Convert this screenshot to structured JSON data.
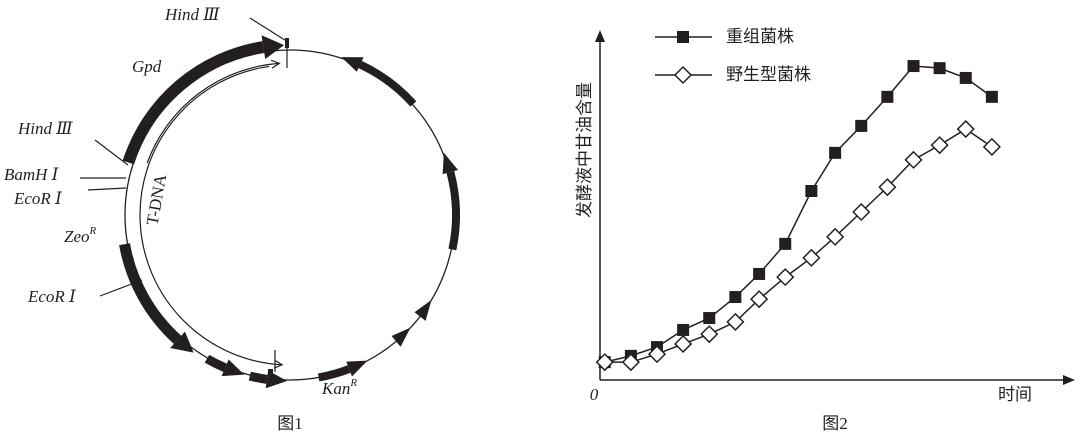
{
  "figure1": {
    "labels": {
      "hind3_top": "Hind Ⅲ",
      "gpd": "Gpd",
      "hind3_left": "Hind Ⅲ",
      "bamh1": "BamH Ⅰ",
      "ecor1_upper": "EcoR Ⅰ",
      "zeo": {
        "text": "Zeo",
        "sup": "R"
      },
      "tdna": "T-DNA",
      "ecor1_lower": "EcoR Ⅰ",
      "kan": {
        "text": "Kan",
        "sup": "R"
      }
    },
    "caption": "图1"
  },
  "chart_data": {
    "type": "line",
    "caption": "图2",
    "x_label": "时间",
    "y_label": "发酵液中甘油含量",
    "xlim": [
      0,
      100
    ],
    "ylim": [
      0,
      100
    ],
    "xticks": [
      0
    ],
    "x": [
      1,
      6.5,
      12,
      17.5,
      23,
      28.5,
      33.5,
      39,
      44.5,
      49.5,
      55,
      60.5,
      66,
      71.5,
      77,
      82.5
    ],
    "series": [
      {
        "name": "重组菌株",
        "color": "#231f20",
        "marker": "square",
        "values": [
          5.1,
          6.9,
          9.4,
          14.3,
          17.7,
          23.7,
          30.3,
          38.9,
          54,
          64.9,
          72.6,
          80.9,
          89.7,
          89.1,
          86.3,
          80.9
        ]
      },
      {
        "name": "野生型菌株",
        "color": "#231f20",
        "marker": "diamond",
        "values": [
          5.1,
          5.1,
          7.4,
          10.3,
          13.1,
          16.6,
          23.1,
          29.4,
          34.9,
          40.9,
          48,
          55.1,
          62.9,
          67.1,
          71.7,
          66.6
        ]
      }
    ],
    "legend": "top-left"
  }
}
